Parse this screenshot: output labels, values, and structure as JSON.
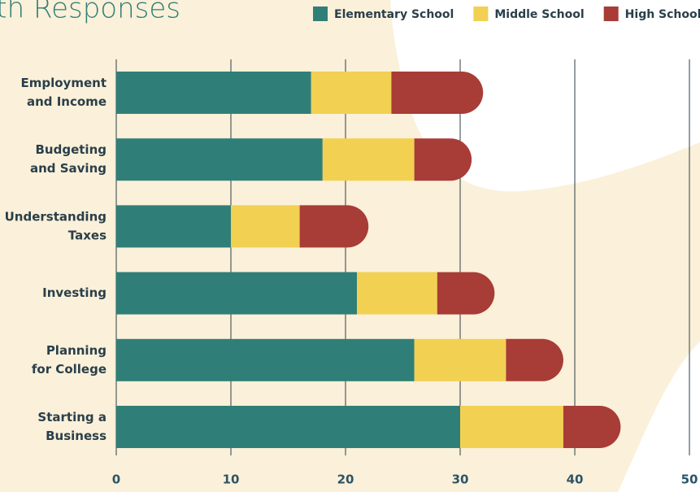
{
  "chart_data": {
    "type": "stacked_barh",
    "title": "Youth Responses",
    "categories": [
      [
        "Employment",
        "and Income"
      ],
      [
        "Budgeting",
        "and Saving"
      ],
      [
        "Understanding",
        "Taxes"
      ],
      [
        "Investing"
      ],
      [
        "Planning",
        "for College"
      ],
      [
        "Starting a",
        "Business"
      ]
    ],
    "series": [
      {
        "name": "Elementary School",
        "color": "#2f7f78",
        "values": [
          17,
          18,
          10,
          21,
          26,
          30
        ]
      },
      {
        "name": "Middle School",
        "color": "#f2d052",
        "values": [
          7,
          8,
          6,
          7,
          8,
          9
        ]
      },
      {
        "name": "High School",
        "color": "#a83c36",
        "values": [
          8,
          5,
          6,
          5,
          5,
          5
        ]
      }
    ],
    "xlim": [
      0,
      50
    ],
    "xticks": [
      0,
      10,
      20,
      30,
      40,
      50
    ],
    "grid": true,
    "legend": "top-right"
  }
}
